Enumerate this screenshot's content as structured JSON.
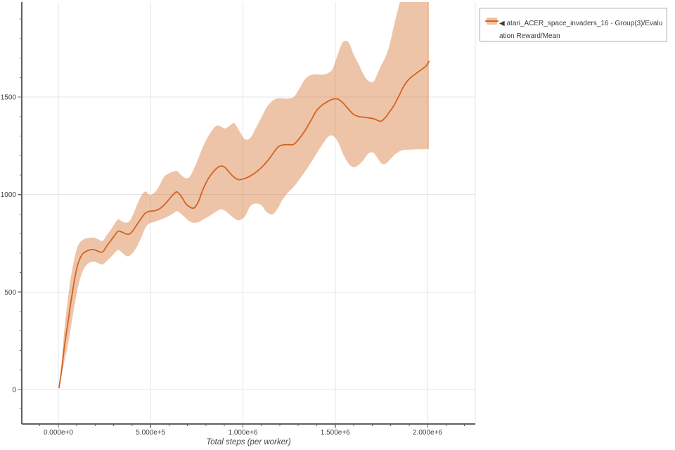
{
  "window": {
    "background": "#ffffff"
  },
  "legend": {
    "marker": "◀",
    "label": "atari_ACER_space_invaders_16 - Group(3)/Evaluation Reward/Mean"
  },
  "chart_data": {
    "type": "line",
    "title": "",
    "xlabel": "Total steps (per worker)",
    "ylabel": "",
    "series_name": "atari_ACER_space_invaders_16 - Group(3)/Evaluation Reward/Mean",
    "legend_position": "top-right-outside",
    "grid": true,
    "line_color": "#d2641e",
    "band_opacity": 0.38,
    "grid_color": "#e5e5e5",
    "axis_color": "#606060",
    "tick_label_color": "#3d3d3d",
    "xlim": [
      -198000,
      2259000
    ],
    "ylim": [
      -177,
      1987
    ],
    "x_ticks": [
      {
        "value": 0,
        "label": "0.000e+0"
      },
      {
        "value": 500000,
        "label": "5.000e+5"
      },
      {
        "value": 1000000,
        "label": "1.000e+6"
      },
      {
        "value": 1500000,
        "label": "1.500e+6"
      },
      {
        "value": 2000000,
        "label": "2.000e+6"
      }
    ],
    "y_ticks": [
      {
        "value": 0,
        "label": "0"
      },
      {
        "value": 500,
        "label": "500"
      },
      {
        "value": 1000,
        "label": "1000"
      },
      {
        "value": 1500,
        "label": "1500"
      }
    ],
    "x_minor": {
      "start": -100000,
      "end": 2200000,
      "step": 100000
    },
    "y_minor": {
      "start": -100,
      "end": 1900,
      "step": 100
    },
    "steps": [
      4000,
      19000,
      34000,
      50000,
      65000,
      80000,
      95000,
      110000,
      133000,
      164000,
      194000,
      217000,
      240000,
      263000,
      286000,
      305000,
      324000,
      347000,
      370000,
      392000,
      419000,
      446000,
      472000,
      495000,
      522000,
      545000,
      571000,
      598000,
      625000,
      644000,
      667000,
      690000,
      712000,
      735000,
      758000,
      781000,
      808000,
      834000,
      857000,
      880000,
      903000,
      926000,
      952000,
      979000,
      1010000,
      1040000,
      1070000,
      1101000,
      1131000,
      1162000,
      1189000,
      1215000,
      1246000,
      1276000,
      1307000,
      1337000,
      1368000,
      1398000,
      1429000,
      1459000,
      1486000,
      1516000,
      1543000,
      1573000,
      1600000,
      1627000,
      1653000,
      1680000,
      1707000,
      1730000,
      1749000,
      1771000,
      1794000,
      1817000,
      1844000,
      1870000,
      1897000,
      1924000,
      1950000,
      1973000,
      1992000,
      2008000
    ],
    "mean": [
      10,
      110,
      230,
      330,
      430,
      520,
      600,
      655,
      697,
      714,
      717,
      708,
      706,
      737,
      766,
      790,
      812,
      806,
      797,
      801,
      836,
      874,
      905,
      914,
      917,
      925,
      944,
      973,
      1003,
      1013,
      989,
      954,
      936,
      931,
      962,
      1020,
      1074,
      1110,
      1134,
      1146,
      1139,
      1114,
      1089,
      1076,
      1082,
      1095,
      1114,
      1139,
      1170,
      1209,
      1243,
      1254,
      1256,
      1258,
      1289,
      1329,
      1379,
      1429,
      1459,
      1477,
      1489,
      1489,
      1469,
      1437,
      1411,
      1400,
      1397,
      1393,
      1389,
      1380,
      1376,
      1394,
      1424,
      1455,
      1504,
      1553,
      1589,
      1611,
      1629,
      1645,
      1659,
      1683
    ],
    "band_low": [
      10,
      80,
      150,
      220,
      300,
      390,
      470,
      540,
      610,
      648,
      655,
      647,
      641,
      660,
      681,
      700,
      715,
      701,
      684,
      690,
      722,
      772,
      830,
      852,
      860,
      868,
      878,
      890,
      905,
      915,
      899,
      879,
      862,
      855,
      858,
      869,
      884,
      899,
      914,
      924,
      917,
      899,
      879,
      868,
      886,
      940,
      954,
      944,
      908,
      899,
      929,
      974,
      1012,
      1040,
      1079,
      1119,
      1163,
      1209,
      1254,
      1294,
      1302,
      1268,
      1207,
      1158,
      1140,
      1152,
      1177,
      1211,
      1214,
      1186,
      1161,
      1157,
      1176,
      1200,
      1219,
      1228,
      1230,
      1231,
      1232,
      1232,
      1233,
      1233
    ],
    "band_high": [
      10,
      150,
      320,
      450,
      560,
      640,
      705,
      745,
      768,
      778,
      778,
      770,
      762,
      792,
      822,
      850,
      872,
      861,
      856,
      872,
      930,
      988,
      1016,
      997,
      1011,
      1041,
      1089,
      1108,
      1119,
      1120,
      1099,
      1084,
      1092,
      1133,
      1185,
      1240,
      1292,
      1331,
      1353,
      1349,
      1339,
      1351,
      1366,
      1329,
      1284,
      1291,
      1341,
      1397,
      1451,
      1482,
      1493,
      1493,
      1492,
      1501,
      1546,
      1592,
      1613,
      1617,
      1615,
      1622,
      1645,
      1725,
      1783,
      1780,
      1718,
      1668,
      1617,
      1583,
      1579,
      1622,
      1663,
      1703,
      1765,
      1862,
      1965,
      2050,
      2120,
      2170,
      2200,
      2220,
      2230,
      2235
    ]
  }
}
